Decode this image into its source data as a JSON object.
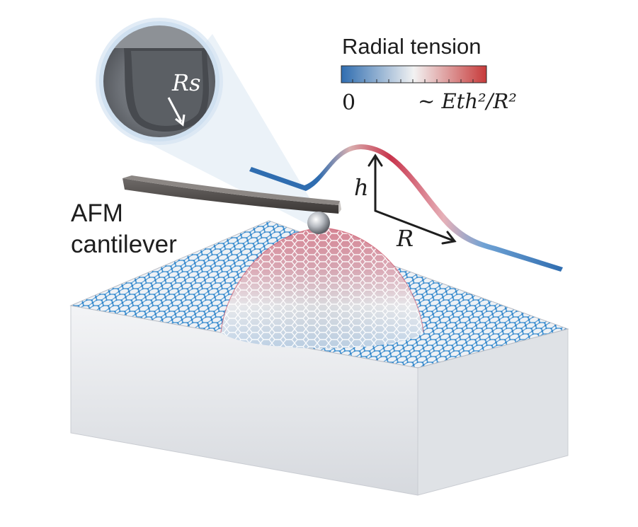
{
  "colorbar": {
    "title": "Radial tension",
    "min_label": "0",
    "max_label": "~ Eth²/R²",
    "colors": [
      "#2f6db0",
      "#f2f2f2",
      "#c73a3a"
    ]
  },
  "labels": {
    "cantilever_line1": "AFM",
    "cantilever_line2": "cantilever",
    "height": "h",
    "radius": "R",
    "tip_radius": "Rs"
  },
  "colors": {
    "graphene_blue": "#3a8fd1",
    "tension_red": "#c8344c",
    "substrate": "#e9ebee"
  }
}
